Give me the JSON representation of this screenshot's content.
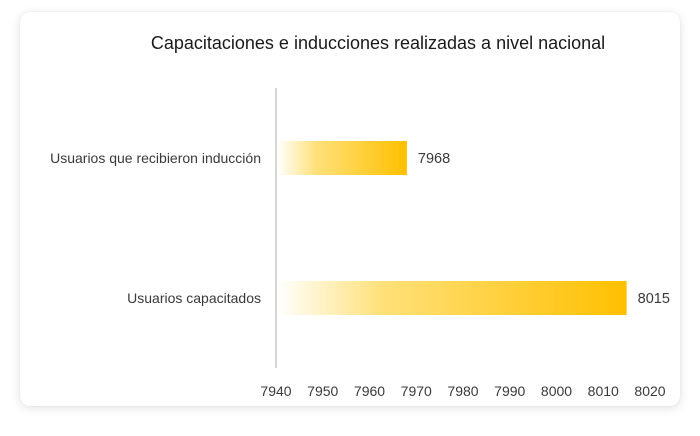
{
  "chart_data": {
    "type": "bar",
    "orientation": "horizontal",
    "title": "Capacitaciones e inducciones realizadas a nivel nacional",
    "categories": [
      "Usuarios que recibieron inducción",
      "Usuarios capacitados"
    ],
    "values": [
      7968,
      8015
    ],
    "data_labels": [
      "7968",
      "8015"
    ],
    "xlim": [
      7940,
      8020
    ],
    "xticks": [
      7940,
      7950,
      7960,
      7970,
      7980,
      7990,
      8000,
      8010,
      8020
    ],
    "xlabel": "",
    "ylabel": "",
    "grid": false,
    "bar_color": "#ffc000",
    "bar_fade_color": "#ffffff"
  }
}
